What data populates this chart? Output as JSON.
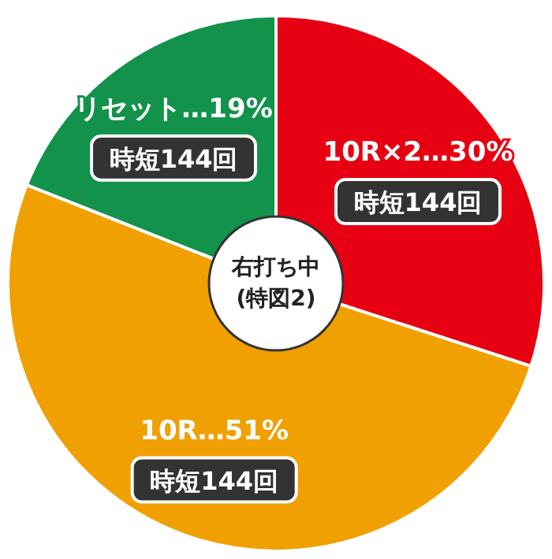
{
  "chart_data": {
    "type": "donut",
    "title": "右打ち中\n(特図2)",
    "categories": [
      "10R×2…30%",
      "10R…51%",
      "リセット…19%"
    ],
    "values": [
      30,
      51,
      19
    ],
    "colors": [
      "#e60012",
      "#f0a000",
      "#12924a"
    ],
    "annotations": [
      "時短144回",
      "時短144回",
      "時短144回"
    ]
  }
}
